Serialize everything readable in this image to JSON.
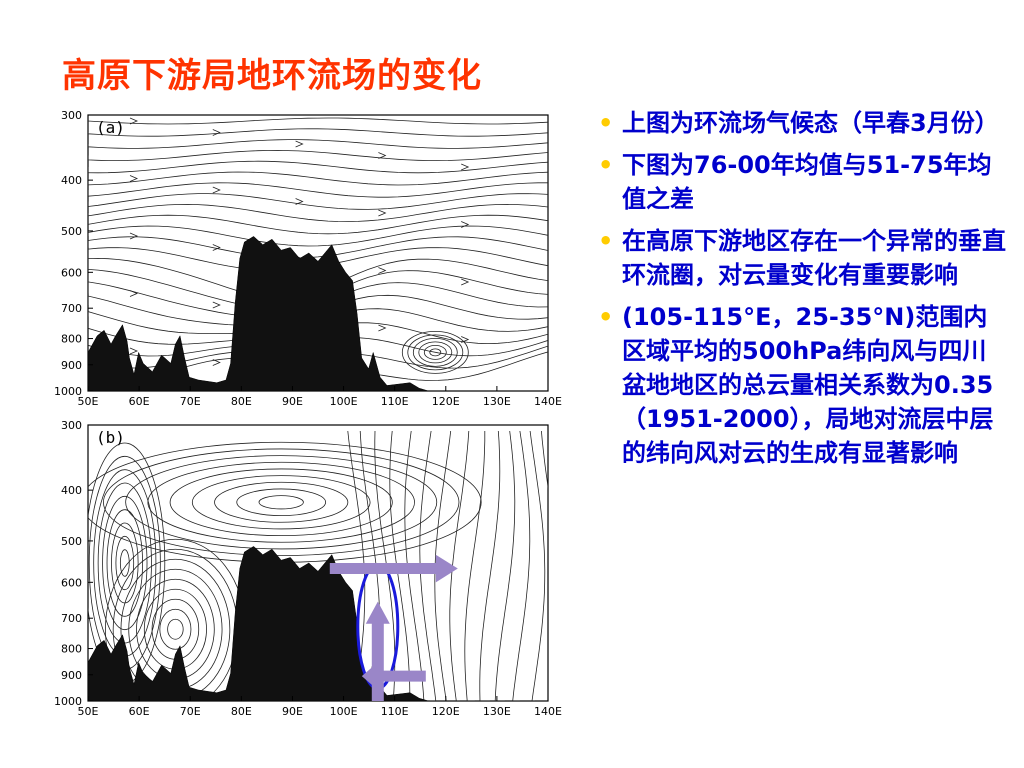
{
  "slide": {
    "title": "高原下游局地环流场的变化"
  },
  "figure_a": {
    "panel_label": "(a)",
    "y_ticks": [
      "300",
      "400",
      "500",
      "600",
      "700",
      "800",
      "900",
      "1000"
    ],
    "x_ticks": [
      "50E",
      "60E",
      "70E",
      "80E",
      "90E",
      "100E",
      "110E",
      "120E",
      "130E",
      "140E"
    ]
  },
  "figure_b": {
    "panel_label": "(b)",
    "y_ticks": [
      "300",
      "400",
      "500",
      "600",
      "700",
      "800",
      "900",
      "1000"
    ],
    "x_ticks": [
      "50E",
      "60E",
      "70E",
      "80E",
      "90E",
      "100E",
      "110E",
      "120E",
      "130E",
      "140E"
    ],
    "overlay_colors": {
      "ellipse": "#1a1adb",
      "arrow": "#9a86c8"
    }
  },
  "bullets": [
    {
      "text": "上图为环流场气候态（早春3月份）"
    },
    {
      "text": "下图为76-00年均值与51-75年均值之差"
    },
    {
      "text": "在高原下游地区存在一个异常的垂直环流圈，对云量变化有重要影响"
    },
    {
      "text": "(105-115°E，25-35°N)范围内区域平均的500hPa纬向风与四川盆地地区的总云量相关系数为0.35（1951-2000），局地对流层中层的纬向风对云的生成有显著影响"
    }
  ],
  "colors": {
    "title": "#ff3300",
    "bullet_text": "#0000cc",
    "bullet_dot": "#ffcc00"
  }
}
